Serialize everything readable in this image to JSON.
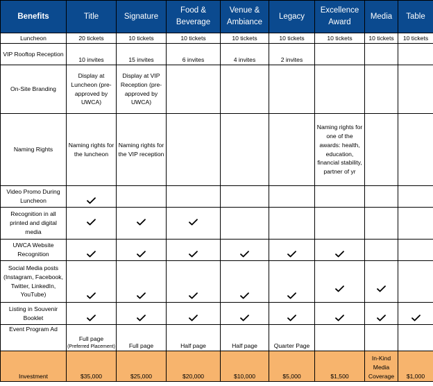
{
  "headers": {
    "benefits": "Benefits",
    "title": "Title",
    "signature": "Signature",
    "food_beverage": "Food & Beverage",
    "venue_ambiance": "Venue & Ambiance",
    "legacy": "Legacy",
    "excellence_award": "Excellence Award",
    "media": "Media",
    "table": "Table"
  },
  "rows": {
    "luncheon": {
      "label": "Luncheon",
      "title": "20 tickets",
      "signature": "10 tickets",
      "food_beverage": "10 tickets",
      "venue_ambiance": "10 tickets",
      "legacy": "10 tickets",
      "excellence_award": "10 tickets",
      "media": "10 tickets",
      "table": "10 tickets"
    },
    "vip": {
      "label": "VIP Rooftop Reception",
      "title": "10 invites",
      "signature": "15 invites",
      "food_beverage": "6 invites",
      "venue_ambiance": "4 invites",
      "legacy": "2 invites"
    },
    "branding": {
      "label": "On-Site Branding",
      "title": "Display at Luncheon (pre-approved by UWCA)",
      "signature": "Display at VIP Reception (pre-approved by UWCA)"
    },
    "naming": {
      "label": "Naming Rights",
      "title": "Naming rights for the luncheon",
      "signature": "Naming rights for the VIP reception",
      "excellence_award": "Naming rights for one of the awards: health, education, financial stability, partner of yr"
    },
    "video": {
      "label": "Video Promo During Luncheon"
    },
    "recognition": {
      "label": "Recognition in all printed and digital media"
    },
    "website": {
      "label": "UWCA Website Recognition"
    },
    "social": {
      "label": "Social Media posts (Instagram, Facebook, Twitter, LinkedIn, YouTube)"
    },
    "souvenir": {
      "label": "Listing in Souvenir Booklet"
    },
    "program_ad": {
      "label": "Event Program Ad",
      "title_main": "Full page",
      "title_note": "(Preferred Placement)",
      "signature": "Full page",
      "food_beverage": "Half page",
      "venue_ambiance": "Half page",
      "legacy": "Quarter Page"
    },
    "investment": {
      "label": "Investment",
      "title": "$35,000",
      "signature": "$25,000",
      "food_beverage": "$20,000",
      "venue_ambiance": "$10,000",
      "legacy": "$5,000",
      "excellence_award": "$1,500",
      "media": "In-Kind Media Coverage",
      "table": "$1,000"
    }
  },
  "colors": {
    "header_bg": "#0b4a8f",
    "header_text": "#ffffff",
    "investment_bg": "#f7b46d"
  },
  "icons": {
    "included": "checkmark-icon"
  }
}
